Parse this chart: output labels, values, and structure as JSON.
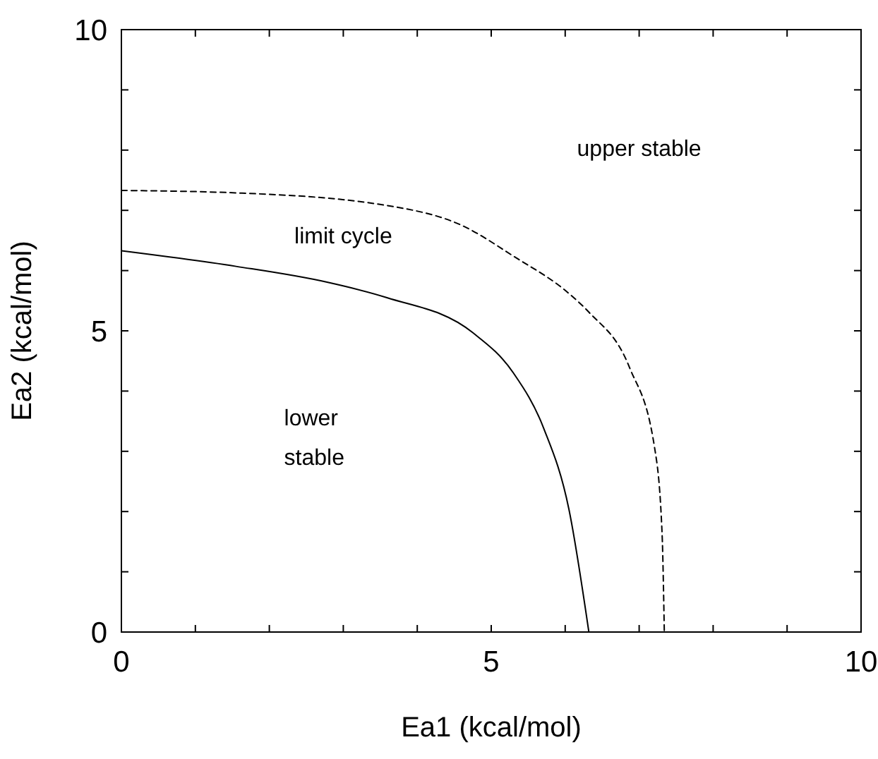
{
  "chart_data": {
    "type": "line",
    "xlabel": "Ea1 (kcal/mol)",
    "ylabel": "Ea2 (kcal/mol)",
    "xlim": [
      0,
      10
    ],
    "ylim": [
      0,
      10
    ],
    "xticks": [
      0,
      {
        "value": 1,
        "label": null
      },
      {
        "value": 2,
        "label": null
      },
      {
        "value": 3,
        "label": null
      },
      {
        "value": 4,
        "label": null
      },
      5,
      {
        "value": 6,
        "label": null
      },
      {
        "value": 7,
        "label": null
      },
      {
        "value": 8,
        "label": null
      },
      {
        "value": 9,
        "label": null
      },
      10
    ],
    "yticks": [
      0,
      {
        "value": 1,
        "label": null
      },
      {
        "value": 2,
        "label": null
      },
      {
        "value": 3,
        "label": null
      },
      {
        "value": 4,
        "label": null
      },
      5,
      {
        "value": 6,
        "label": null
      },
      {
        "value": 7,
        "label": null
      },
      {
        "value": 8,
        "label": null
      },
      {
        "value": 9,
        "label": null
      },
      10
    ],
    "grid": false,
    "marker": "none",
    "series": [
      {
        "color": "#000000",
        "line_style": "solid",
        "x": [
          0,
          1.55,
          2.77,
          3.59,
          4.75,
          5.3,
          5.71,
          6.05,
          6.32
        ],
        "values": [
          6.33,
          6.07,
          5.81,
          5.55,
          4.97,
          4.3,
          3.38,
          2.04,
          0
        ]
      },
      {
        "color": "#000000",
        "line_style": "dashed",
        "x": [
          0,
          1.55,
          3.59,
          4.62,
          5.3,
          6.05,
          6.32,
          6.87,
          7.21,
          7.31,
          7.34
        ],
        "values": [
          7.33,
          7.29,
          7.08,
          6.74,
          6.24,
          5.62,
          5.31,
          4.39,
          3.05,
          1.63,
          0
        ]
      }
    ],
    "annotations": [
      "upper stable",
      "limit cycle",
      "lower\nstable"
    ]
  }
}
